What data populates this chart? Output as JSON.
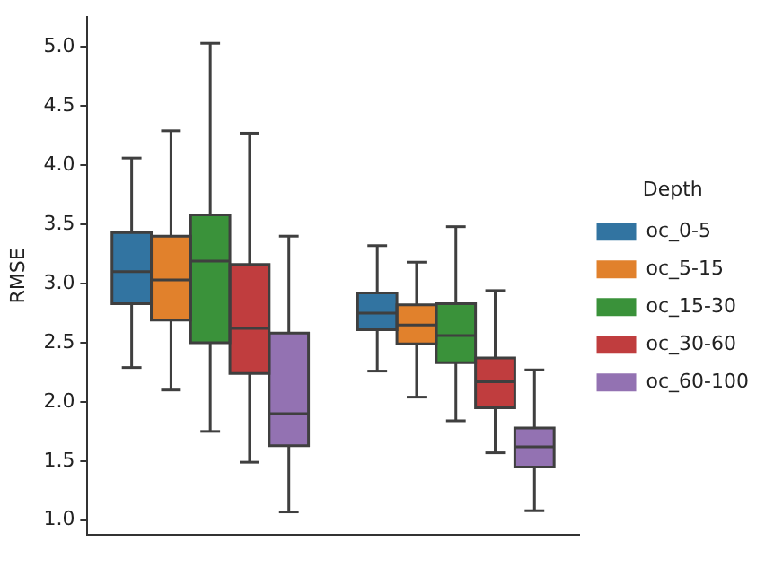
{
  "chart_data": {
    "type": "box",
    "ylabel": "RMSE",
    "legend_title": "Depth",
    "legend": "right",
    "grid": false,
    "categories": [
      null,
      null
    ],
    "ylim": [
      0.88,
      5.25
    ],
    "yticks": [
      {
        "value": 1,
        "label": "1.0"
      },
      1.5,
      {
        "value": 2,
        "label": "2.0"
      },
      2.5,
      {
        "value": 3,
        "label": "3.0"
      },
      3.5,
      {
        "value": 4,
        "label": "4.0"
      },
      4.5,
      {
        "value": 5,
        "label": "5.0"
      }
    ],
    "series": [
      {
        "name": "oc_0-5",
        "color": "#3274a1",
        "boxes": [
          {
            "low": 2.29,
            "q1": 2.83,
            "median": 3.1,
            "q3": 3.43,
            "high": 4.06
          },
          {
            "low": 2.26,
            "q1": 2.61,
            "median": 2.75,
            "q3": 2.92,
            "high": 3.32
          }
        ]
      },
      {
        "name": "oc_5-15",
        "color": "#e1812c",
        "boxes": [
          {
            "low": 2.1,
            "q1": 2.69,
            "median": 3.03,
            "q3": 3.4,
            "high": 4.29
          },
          {
            "low": 2.04,
            "q1": 2.49,
            "median": 2.65,
            "q3": 2.82,
            "high": 3.18
          }
        ]
      },
      {
        "name": "oc_15-30",
        "color": "#3a923a",
        "boxes": [
          {
            "low": 1.75,
            "q1": 2.5,
            "median": 3.19,
            "q3": 3.58,
            "high": 5.03
          },
          {
            "low": 1.84,
            "q1": 2.33,
            "median": 2.56,
            "q3": 2.83,
            "high": 3.48
          }
        ]
      },
      {
        "name": "oc_30-60",
        "color": "#c03d3e",
        "boxes": [
          {
            "low": 1.49,
            "q1": 2.24,
            "median": 2.62,
            "q3": 3.16,
            "high": 4.27
          },
          {
            "low": 1.57,
            "q1": 1.95,
            "median": 2.17,
            "q3": 2.37,
            "high": 2.94
          }
        ]
      },
      {
        "name": "oc_60-100",
        "color": "#9372b2",
        "boxes": [
          {
            "low": 1.07,
            "q1": 1.63,
            "median": 1.9,
            "q3": 2.58,
            "high": 3.4
          },
          {
            "low": 1.08,
            "q1": 1.45,
            "median": 1.62,
            "q3": 1.78,
            "high": 2.27
          }
        ]
      }
    ]
  }
}
